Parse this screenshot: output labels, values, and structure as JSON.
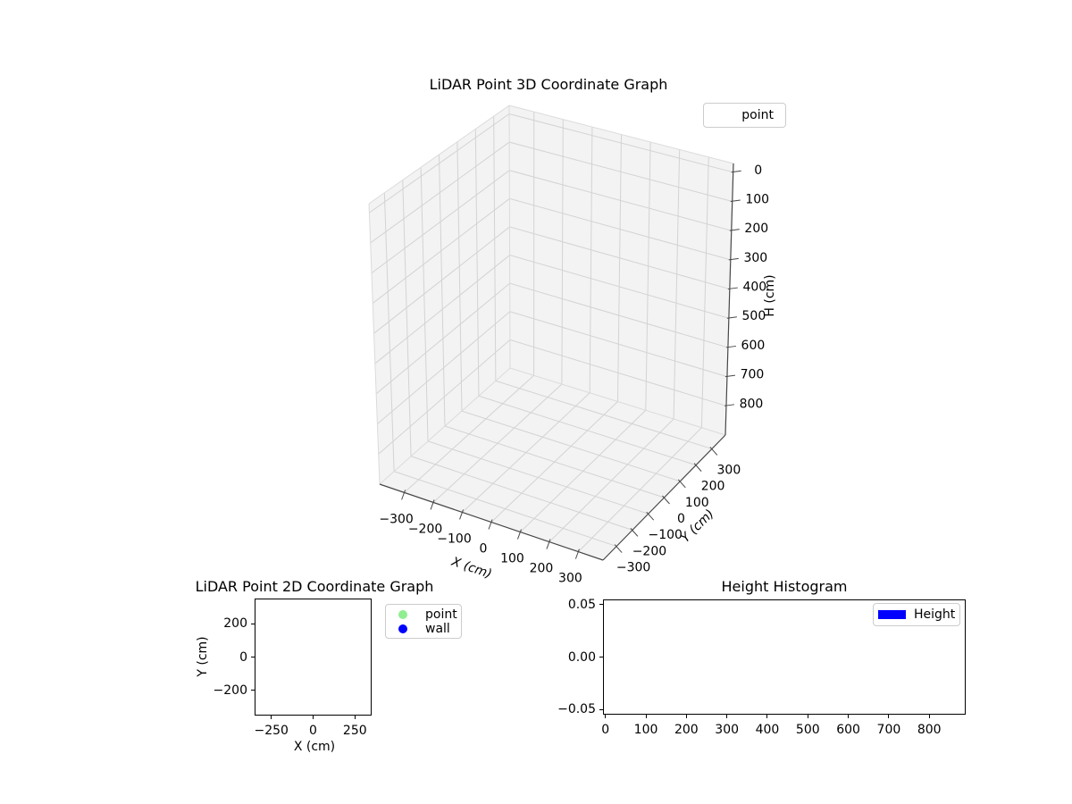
{
  "figure": {
    "background": "#ffffff"
  },
  "colors": {
    "pane": "#f3f3f3",
    "grid_line": "#d3d3d3",
    "pane_edge": "#dbdbdb",
    "axis_line": "#474747",
    "tick_color": "#333333",
    "legend_border": "#cccccc",
    "point_green": "#90ee90",
    "wall_blue": "#0000ff"
  },
  "chart_data": [
    {
      "id": "lidar_3d",
      "type": "scatter3d",
      "title": "LiDAR Point 3D Coordinate Graph",
      "xlabel": "X (cm)",
      "ylabel": "Y (cm)",
      "zlabel": "H (cm)",
      "xlim": [
        -385,
        385
      ],
      "ylim": [
        -385,
        385
      ],
      "zlim": [
        -30,
        900
      ],
      "z_axis_inverted": true,
      "grid": true,
      "xticks": [
        -300,
        -200,
        -100,
        0,
        100,
        200,
        300
      ],
      "xticklabels": [
        "−300",
        "−200",
        "−100",
        "0",
        "100",
        "200",
        "300"
      ],
      "yticks": [
        -300,
        -200,
        -100,
        0,
        100,
        200,
        300
      ],
      "yticklabels": [
        "−300",
        "−200",
        "−100",
        "0",
        "100",
        "200",
        "300"
      ],
      "zticks": [
        0,
        100,
        200,
        300,
        400,
        500,
        600,
        700,
        800
      ],
      "zticklabels": [
        "0",
        "100",
        "200",
        "300",
        "400",
        "500",
        "600",
        "700",
        "800"
      ],
      "legend": {
        "position": "upper right",
        "items": [
          {
            "label": "point"
          }
        ]
      },
      "series": [
        {
          "name": "point",
          "points": []
        }
      ]
    },
    {
      "id": "lidar_2d",
      "type": "scatter",
      "title": "LiDAR Point 2D Coordinate Graph",
      "xlabel": "X (cm)",
      "ylabel": "Y (cm)",
      "xlim": [
        -350,
        350
      ],
      "ylim": [
        -350,
        350
      ],
      "grid": false,
      "xticks": [
        -250,
        0,
        250
      ],
      "xticklabels": [
        "−250",
        "0",
        "250"
      ],
      "yticks": [
        200,
        0,
        -200
      ],
      "yticklabels": [
        "200",
        "0",
        "−200"
      ],
      "legend": {
        "position": "outside upper right",
        "items": [
          {
            "label": "point",
            "color": "#90ee90",
            "marker": "circle"
          },
          {
            "label": "wall",
            "color": "#0000ff",
            "marker": "circle"
          }
        ]
      },
      "series": [
        {
          "name": "point",
          "color": "#90ee90",
          "points": []
        },
        {
          "name": "wall",
          "color": "#0000ff",
          "points": []
        }
      ]
    },
    {
      "id": "height_histogram",
      "type": "bar",
      "title": "Height Histogram",
      "xlabel": "",
      "ylabel": "",
      "xlim": [
        -6,
        890
      ],
      "ylim": [
        -0.055,
        0.055
      ],
      "grid": false,
      "xticks": [
        0,
        100,
        200,
        300,
        400,
        500,
        600,
        700,
        800
      ],
      "xticklabels": [
        "0",
        "100",
        "200",
        "300",
        "400",
        "500",
        "600",
        "700",
        "800"
      ],
      "yticks": [
        0.05,
        0.0,
        -0.05
      ],
      "yticklabels": [
        "0.05",
        "0.00",
        "−0.05"
      ],
      "legend": {
        "position": "upper right",
        "items": [
          {
            "label": "Height",
            "color": "#0000ff",
            "marker": "rect"
          }
        ]
      },
      "values": []
    }
  ]
}
